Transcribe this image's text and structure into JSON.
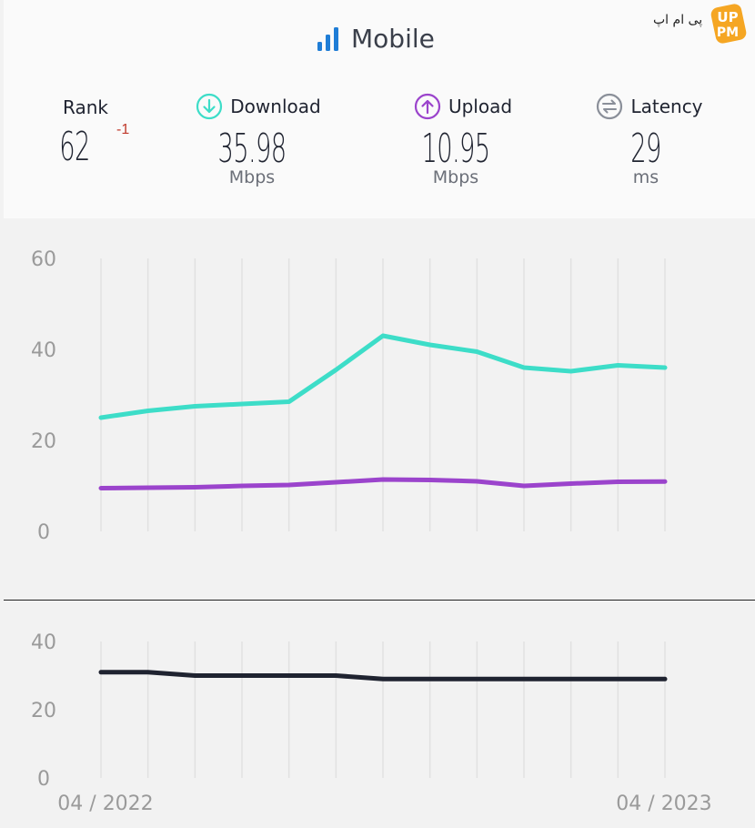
{
  "title": "Mobile",
  "logo": {
    "text": "پی ام اپ",
    "badge_top": "UP",
    "badge_bottom": "PM",
    "badge_color": "#f5a623"
  },
  "metrics": {
    "rank": {
      "label": "Rank",
      "value": "62",
      "delta": "-1"
    },
    "download": {
      "label": "Download",
      "value": "35.98",
      "unit": "Mbps",
      "color": "#3dddc8"
    },
    "upload": {
      "label": "Upload",
      "value": "10.95",
      "unit": "Mbps",
      "color": "#9b44cc"
    },
    "latency": {
      "label": "Latency",
      "value": "29",
      "unit": "ms",
      "color": "#8a8f99"
    }
  },
  "chart_data": [
    {
      "type": "line",
      "ylim": [
        0,
        60
      ],
      "yticks": [
        "0",
        "20",
        "40",
        "60"
      ],
      "grid": true,
      "series": [
        {
          "values": [
            25,
            26.5,
            27.5,
            28,
            28.5,
            35.5,
            43,
            41,
            39.5,
            36,
            35.2,
            36.5,
            36
          ],
          "color": "#3dddc8"
        },
        {
          "values": [
            9.5,
            9.6,
            9.7,
            10,
            10.2,
            10.8,
            11.4,
            11.3,
            11,
            10,
            10.5,
            10.9,
            10.95
          ],
          "color": "#9b44cc"
        }
      ]
    },
    {
      "type": "line",
      "ylim": [
        0,
        40
      ],
      "yticks": [
        "0",
        "20",
        "40"
      ],
      "grid": true,
      "series": [
        {
          "values": [
            31,
            31,
            30,
            30,
            30,
            30,
            29,
            29,
            29,
            29,
            29,
            29,
            29
          ],
          "color": "#1f2330"
        }
      ],
      "xlabels": {
        "start": "04 / 2022",
        "end": "04 / 2023"
      }
    }
  ]
}
